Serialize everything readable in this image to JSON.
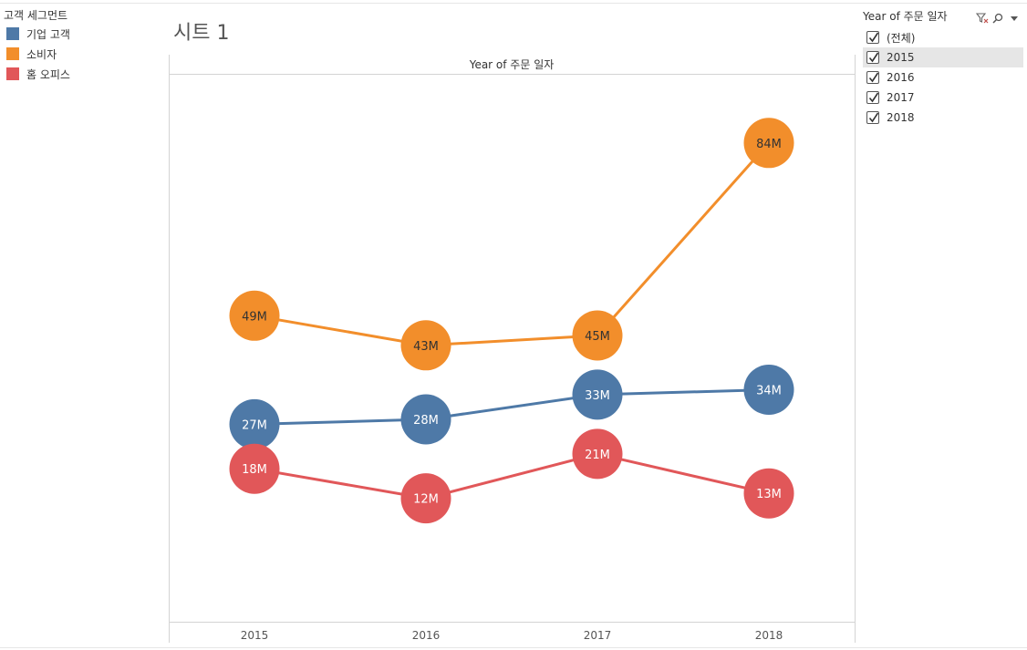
{
  "legend": {
    "title": "고객 세그먼트",
    "items": [
      {
        "label": "기업 고객",
        "color": "#4e79a7"
      },
      {
        "label": "소비자",
        "color": "#f28e2b"
      },
      {
        "label": "홈 오피스",
        "color": "#e15759"
      }
    ]
  },
  "sheet": {
    "title": "시트 1"
  },
  "filter": {
    "title": "Year of 주문 일자",
    "icons": [
      "filter-clear-icon",
      "search-icon",
      "dropdown-icon"
    ],
    "items": [
      {
        "label": "(전체)",
        "checked": true
      },
      {
        "label": "2015",
        "checked": true
      },
      {
        "label": "2016",
        "checked": true
      },
      {
        "label": "2017",
        "checked": true
      },
      {
        "label": "2018",
        "checked": true
      }
    ]
  },
  "chart_data": {
    "type": "line",
    "title": "Year of 주문 일자",
    "categories": [
      "2015",
      "2016",
      "2017",
      "2018"
    ],
    "series": [
      {
        "name": "기업 고객",
        "color": "#4e79a7",
        "values": [
          27,
          28,
          33,
          34
        ],
        "labels": [
          "27M",
          "28M",
          "33M",
          "34M"
        ]
      },
      {
        "name": "소비자",
        "color": "#f28e2b",
        "values": [
          49,
          43,
          45,
          84
        ],
        "labels": [
          "49M",
          "43M",
          "45M",
          "84M"
        ]
      },
      {
        "name": "홈 오피스",
        "color": "#e15759",
        "values": [
          18,
          12,
          21,
          13
        ],
        "labels": [
          "18M",
          "12M",
          "21M",
          "13M"
        ]
      }
    ],
    "ylim": [
      -13,
      98
    ],
    "grid": false,
    "legend_position": "left"
  }
}
